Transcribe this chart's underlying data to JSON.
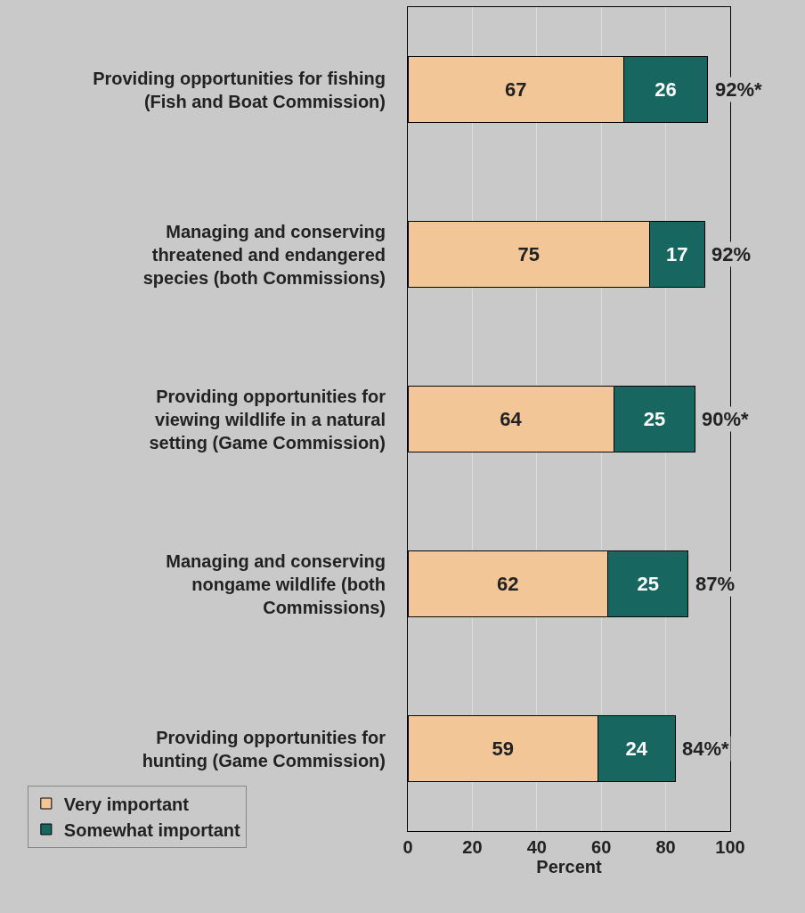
{
  "chart_data": {
    "type": "bar",
    "orientation": "horizontal",
    "stacked": true,
    "xlabel": "Percent",
    "categories": [
      "Providing opportunities for fishing\n(Fish and Boat Commission)",
      "Managing and conserving\nthreatened and endangered\nspecies (both Commissions)",
      "Providing opportunities for\nviewing wildlife in a natural\nsetting (Game Commission)",
      "Managing and conserving\nnongame wildlife (both\nCommissions)",
      "Providing opportunities for\nhunting (Game Commission)"
    ],
    "series": [
      {
        "name": "Very important",
        "color": "#f2c697",
        "values": [
          67,
          75,
          64,
          62,
          59
        ]
      },
      {
        "name": "Somewhat important",
        "color": "#17665f",
        "values": [
          26,
          17,
          25,
          25,
          24
        ]
      }
    ],
    "totals": [
      "92%*",
      "92%",
      "90%*",
      "87%",
      "84%*"
    ],
    "data_labels": true,
    "xlim": [
      0,
      100
    ],
    "xticks": [
      0,
      20,
      40,
      60,
      80,
      100
    ],
    "grid": "x",
    "legend": "bottom left"
  }
}
